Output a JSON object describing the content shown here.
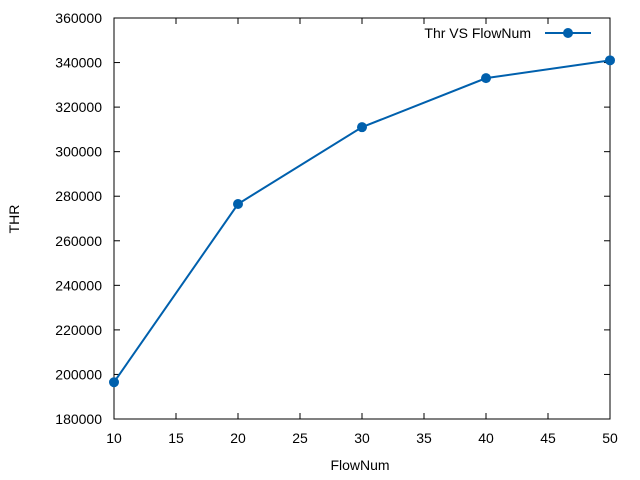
{
  "chart_data": {
    "type": "line",
    "title": "",
    "xlabel": "FlowNum",
    "ylabel": "THR",
    "xlim": [
      10,
      50
    ],
    "ylim": [
      180000,
      360000
    ],
    "xticks": [
      "10",
      "15",
      "20",
      "25",
      "30",
      "35",
      "40",
      "45",
      "50"
    ],
    "yticks": [
      "180000",
      "200000",
      "220000",
      "240000",
      "260000",
      "280000",
      "300000",
      "320000",
      "340000",
      "360000"
    ],
    "grid": false,
    "legend_position": "top-right",
    "series": [
      {
        "name": "Thr VS FlowNum",
        "color": "#0060ad",
        "marker": "circle",
        "x": [
          10,
          20,
          30,
          40,
          50
        ],
        "y": [
          196500,
          276500,
          311000,
          333000,
          341000
        ]
      }
    ]
  }
}
